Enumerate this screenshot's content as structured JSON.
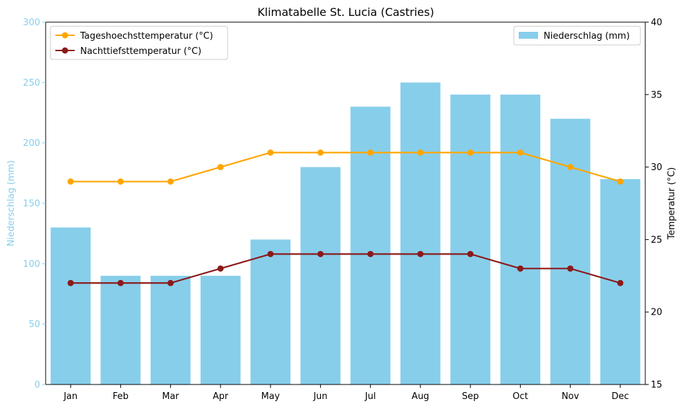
{
  "chart_data": {
    "type": "bar",
    "title": "Klimatabelle St. Lucia (Castries)",
    "categories": [
      "Jan",
      "Feb",
      "Mar",
      "Apr",
      "May",
      "Jun",
      "Jul",
      "Aug",
      "Sep",
      "Oct",
      "Nov",
      "Dec"
    ],
    "left_axis": {
      "label": "Niederschlag (mm)",
      "ylim": [
        0,
        300
      ],
      "ticks": [
        0,
        50,
        100,
        150,
        200,
        250,
        300
      ],
      "color": "#87ceeb"
    },
    "right_axis": {
      "label": "Temperatur (°C)",
      "ylim": [
        15,
        40
      ],
      "ticks": [
        15,
        20,
        25,
        30,
        35,
        40
      ],
      "color": "#000000"
    },
    "bars": {
      "name": "Niederschlag (mm)",
      "color": "#87ceeb",
      "values": [
        130,
        90,
        90,
        90,
        120,
        180,
        230,
        250,
        240,
        240,
        220,
        170
      ]
    },
    "lines": [
      {
        "name": "Tageshoechsttemperatur (°C)",
        "color": "#ffa500",
        "values": [
          29,
          29,
          29,
          30,
          31,
          31,
          31,
          31,
          31,
          31,
          30,
          29
        ]
      },
      {
        "name": "Nachttiefsttemperatur (°C)",
        "color": "#8b1a1a",
        "values": [
          22,
          22,
          22,
          23,
          24,
          24,
          24,
          24,
          24,
          23,
          23,
          22
        ]
      }
    ],
    "grid": false,
    "legend_lines_position": "top-left",
    "legend_bars_position": "top-right"
  }
}
